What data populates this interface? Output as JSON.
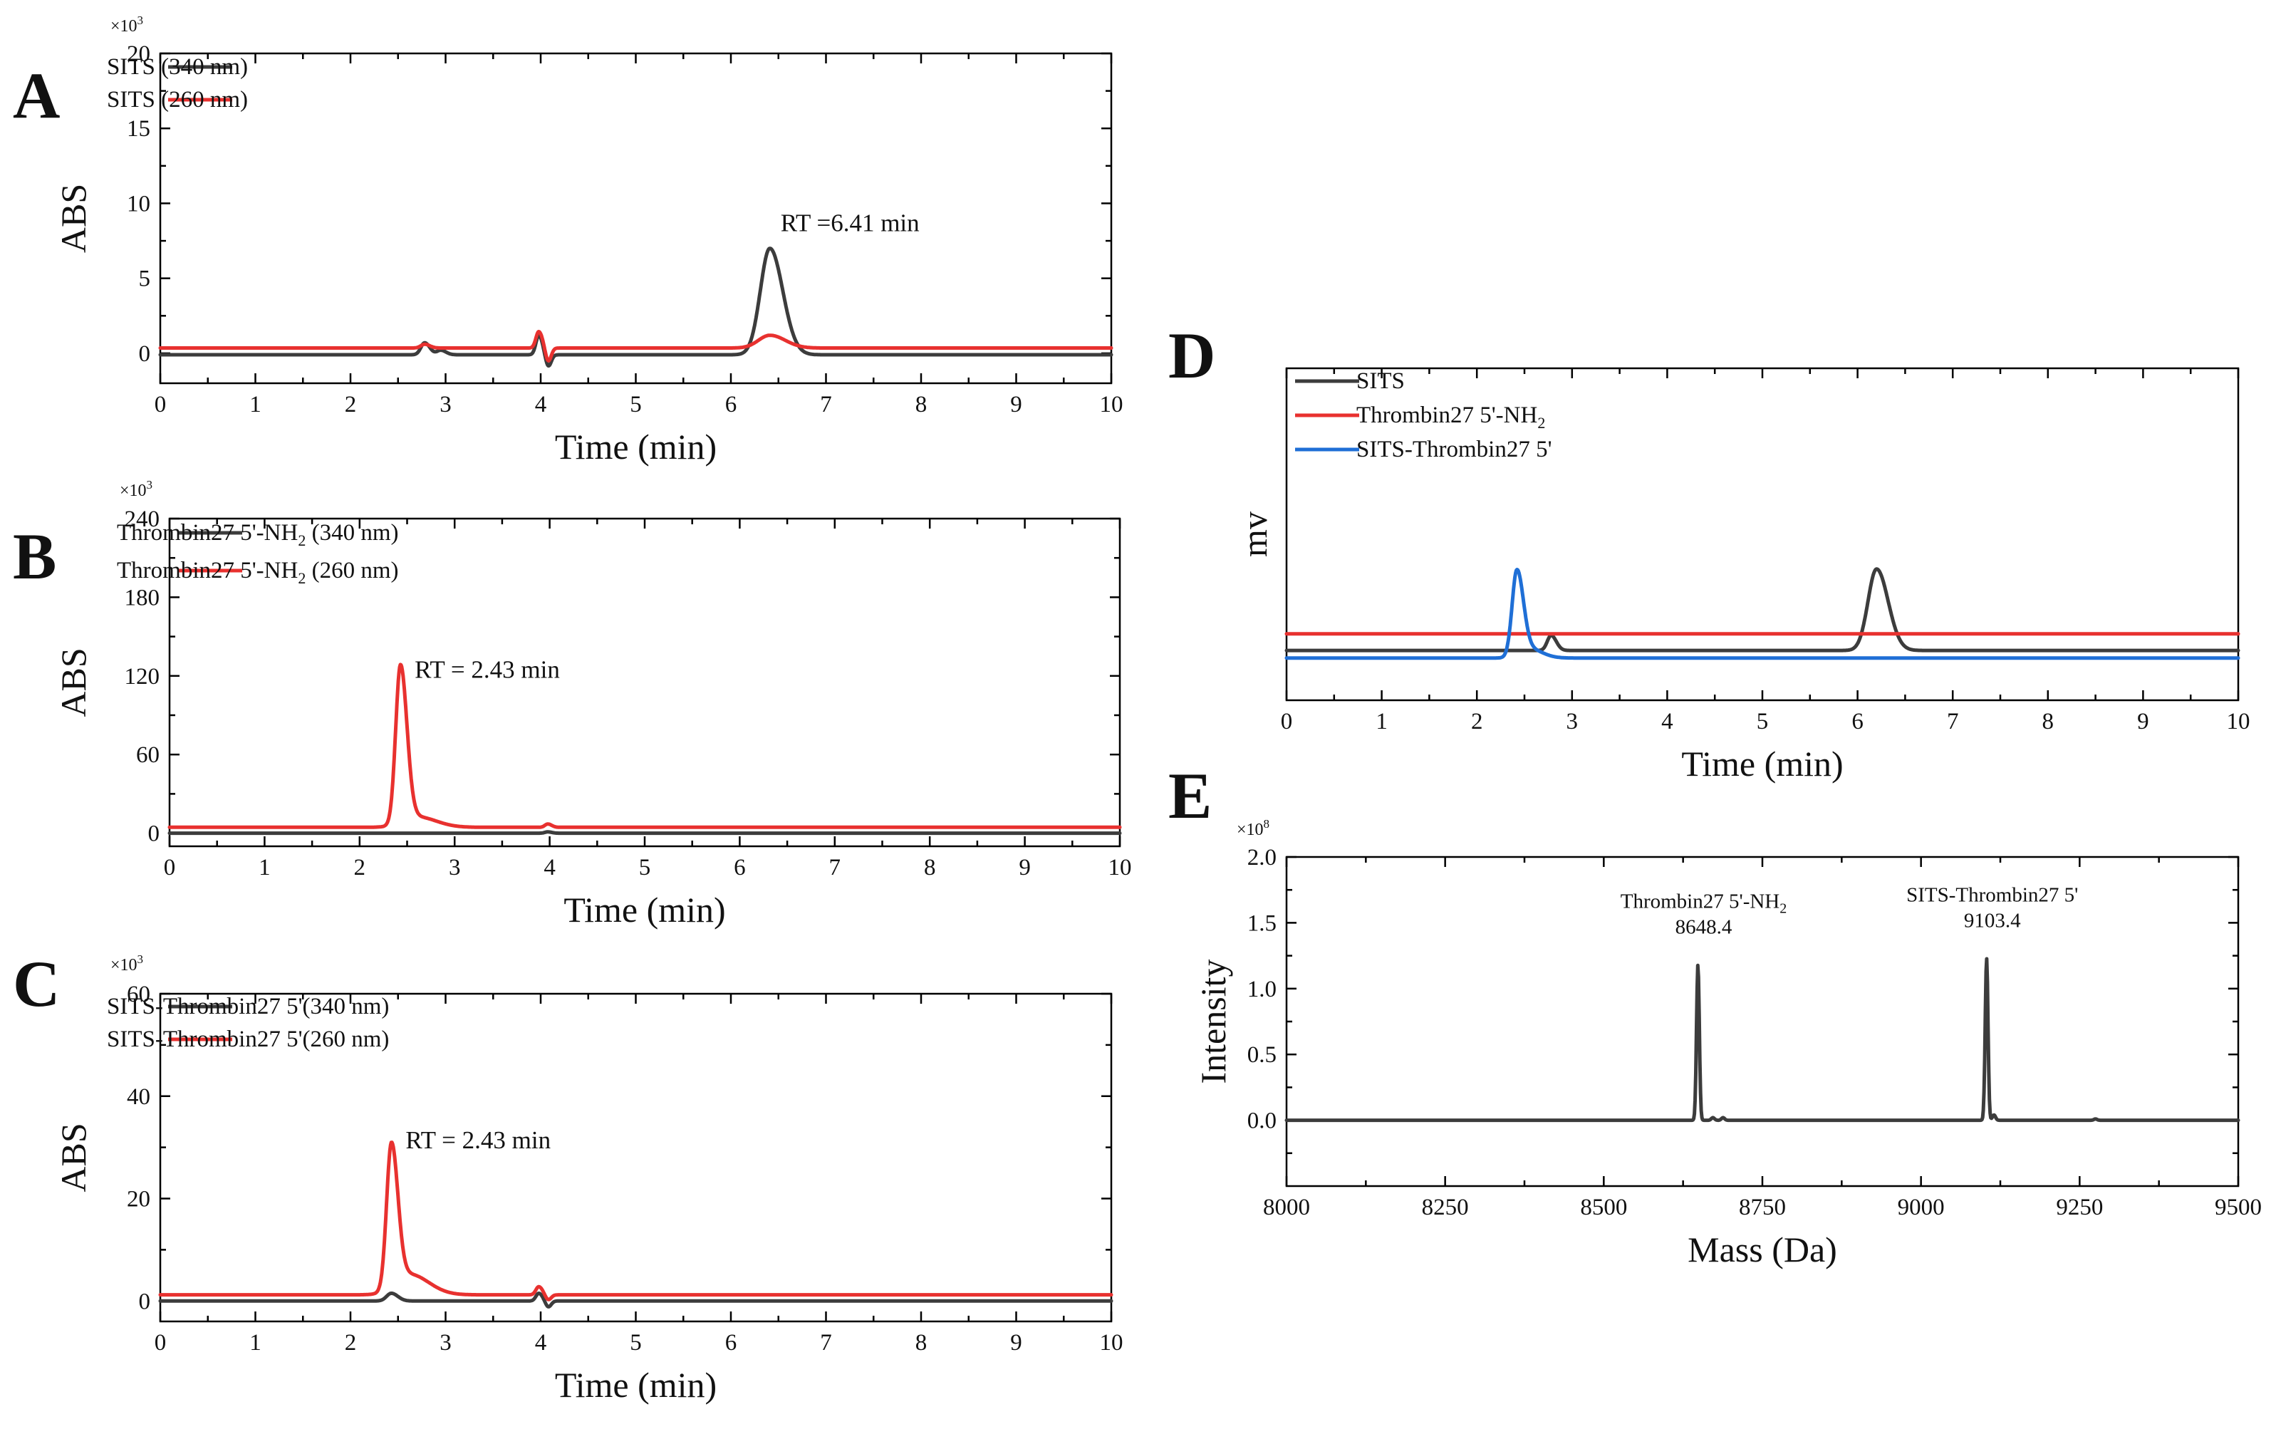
{
  "figure": {
    "description_panels": [
      "A",
      "B",
      "C",
      "D",
      "E"
    ]
  },
  "chart_data": [
    {
      "panel": "A",
      "type": "line",
      "xlabel": "Time (min)",
      "ylabel": "ABS",
      "y_multiplier": "×10",
      "y_multiplier_exp": "3",
      "xlim": [
        0,
        10
      ],
      "ylim": [
        -2,
        20
      ],
      "xticks": [
        0,
        1,
        2,
        3,
        4,
        5,
        6,
        7,
        8,
        9,
        10
      ],
      "yticks": [
        0,
        5,
        10,
        15,
        20
      ],
      "series": [
        {
          "name": "SITS (340 nm)",
          "color": "#3c3c3c",
          "baseline": -0.1,
          "peaks": [
            [
              2.78,
              0.8,
              0.04
            ],
            [
              2.95,
              0.3,
              0.04
            ],
            [
              3.98,
              1.3,
              0.03
            ],
            [
              6.41,
              7.1,
              0.1
            ]
          ],
          "dips": [
            [
              4.08,
              -0.8,
              0.03
            ]
          ]
        },
        {
          "name": "SITS (260 nm)",
          "color": "#e8312f",
          "baseline": 0.35,
          "peaks": [
            [
              2.78,
              0.25,
              0.04
            ],
            [
              3.98,
              1.1,
              0.03
            ],
            [
              6.41,
              0.85,
              0.12
            ]
          ],
          "dips": [
            [
              4.08,
              -0.9,
              0.03
            ]
          ]
        }
      ],
      "annotations": [
        {
          "text": "RT =6.41 min",
          "x": 6.41,
          "y": 7.1
        }
      ]
    },
    {
      "panel": "B",
      "type": "line",
      "xlabel": "Time (min)",
      "ylabel": "ABS",
      "y_multiplier": "×10",
      "y_multiplier_exp": "3",
      "xlim": [
        0,
        10
      ],
      "ylim": [
        -10,
        240
      ],
      "xticks": [
        0,
        1,
        2,
        3,
        4,
        5,
        6,
        7,
        8,
        9,
        10
      ],
      "yticks": [
        0,
        60,
        120,
        180,
        240
      ],
      "series": [
        {
          "name": "Thrombin27 5'-NH2 (340 nm)",
          "color": "#3c3c3c",
          "baseline": 0.0,
          "peaks": [
            [
              3.98,
              1.0,
              0.03
            ]
          ],
          "dips": []
        },
        {
          "name": "Thrombin27 5'-NH2 (260 nm)",
          "color": "#e8312f",
          "baseline": 4.5,
          "peaks": [
            [
              2.43,
              120,
              0.05
            ],
            [
              2.6,
              8,
              0.15
            ],
            [
              3.98,
              2.5,
              0.03
            ]
          ],
          "dips": []
        }
      ],
      "annotations": [
        {
          "text": "RT = 2.43 min",
          "x": 2.43,
          "y": 125
        }
      ]
    },
    {
      "panel": "C",
      "type": "line",
      "xlabel": "Time (min)",
      "ylabel": "ABS",
      "y_multiplier": "×10",
      "y_multiplier_exp": "3",
      "xlim": [
        0,
        10
      ],
      "ylim": [
        -4,
        60
      ],
      "xticks": [
        0,
        1,
        2,
        3,
        4,
        5,
        6,
        7,
        8,
        9,
        10
      ],
      "yticks": [
        0,
        20,
        40,
        60
      ],
      "series": [
        {
          "name": "SITS-Thrombin27 5'(340 nm)",
          "color": "#3c3c3c",
          "baseline": 0.0,
          "peaks": [
            [
              2.43,
              1.5,
              0.05
            ],
            [
              3.98,
              1.5,
              0.03
            ]
          ],
          "dips": [
            [
              4.08,
              -1.2,
              0.03
            ]
          ]
        },
        {
          "name": "SITS-Thrombin27 5'(260 nm)",
          "color": "#e8312f",
          "baseline": 1.2,
          "peaks": [
            [
              2.43,
              28,
              0.05
            ],
            [
              2.62,
              4,
              0.15
            ],
            [
              3.98,
              1.6,
              0.03
            ]
          ],
          "dips": [
            [
              4.08,
              -1.0,
              0.03
            ]
          ]
        }
      ],
      "annotations": [
        {
          "text": "RT = 2.43 min",
          "x": 2.43,
          "y": 31.5
        }
      ]
    },
    {
      "panel": "D",
      "type": "line",
      "xlabel": "Time (min)",
      "ylabel": "mv",
      "xlim": [
        0,
        10
      ],
      "ylim": [
        -1,
        10
      ],
      "xticks": [
        0,
        1,
        2,
        3,
        4,
        5,
        6,
        7,
        8,
        9,
        10
      ],
      "yticks": [],
      "series": [
        {
          "name": "SITS",
          "color": "#3c3c3c",
          "baseline": 0.65,
          "peaks": [
            [
              2.78,
              0.5,
              0.04
            ],
            [
              6.2,
              2.7,
              0.09
            ]
          ],
          "dips": []
        },
        {
          "name": "Thrombin27 5'-NH2",
          "color": "#e8312f",
          "baseline": 1.2,
          "peaks": [],
          "dips": []
        },
        {
          "name": "SITS-Thrombin27 5'",
          "color": "#1f6fd6",
          "baseline": 0.4,
          "peaks": [
            [
              2.42,
              2.8,
              0.05
            ],
            [
              2.55,
              0.3,
              0.1
            ]
          ],
          "dips": []
        }
      ],
      "annotations": []
    },
    {
      "panel": "E",
      "type": "line",
      "xlabel": "Mass (Da)",
      "ylabel": "Intensity",
      "y_multiplier": "×10",
      "y_multiplier_exp": "8",
      "xlim": [
        8000,
        9500
      ],
      "ylim": [
        -0.5,
        2.0
      ],
      "xticks": [
        8000,
        8250,
        8500,
        8750,
        9000,
        9250,
        9500
      ],
      "yticks": [
        0.0,
        0.5,
        1.0,
        1.5,
        2.0
      ],
      "series": [
        {
          "name": "mass spectrum",
          "color": "#3c3c3c",
          "baseline": 0.0,
          "peaks": [
            [
              8648.4,
              1.18,
              2.2
            ],
            [
              8672,
              0.02,
              2.5
            ],
            [
              8688,
              0.02,
              2.5
            ],
            [
              9103.4,
              1.23,
              2.2
            ],
            [
              9115,
              0.04,
              2.5
            ],
            [
              9275,
              0.01,
              2.5
            ]
          ],
          "dips": []
        }
      ],
      "annotations": [
        {
          "label": "Thrombin27 5'-NH",
          "subscript": "2",
          "mass": "8648.4",
          "x": 8648.4,
          "y": 1.18
        },
        {
          "label": "SITS-Thrombin27 5'",
          "subscript": "",
          "mass": "9103.4",
          "x": 9103.4,
          "y": 1.23
        }
      ]
    }
  ]
}
